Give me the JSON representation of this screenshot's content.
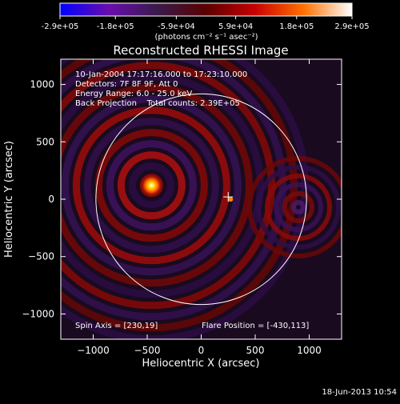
{
  "chart_data": {
    "type": "heatmap",
    "title": "Reconstructed RHESSI Image",
    "xlabel": "Heliocentric X (arcsec)",
    "ylabel": "Heliocentric Y (arcsec)",
    "xlim": [
      -1300,
      1300
    ],
    "ylim": [
      -1220,
      1220
    ],
    "xticks": [
      -1000,
      -500,
      0,
      500,
      1000
    ],
    "yticks": [
      -1000,
      -500,
      0,
      500,
      1000
    ],
    "colorbar": {
      "range": [
        -290000,
        290000
      ],
      "tick_labels": [
        "-2.9e+05",
        "-1.8e+05",
        "-5.9e+04",
        "5.9e+04",
        "1.8e+05",
        "2.9e+05"
      ],
      "unit_label": "(photons cm⁻² s⁻¹ asec⁻²)",
      "colors": [
        "#0000ff",
        "#6a0dad",
        "#3a1a4a",
        "#5a0000",
        "#c80000",
        "#ff7000",
        "#ffffff"
      ]
    },
    "info_lines": [
      "10-Jan-2004 17:17:16.000 to 17:23:10.000",
      "Detectors: 7F 8F 9F, Att 0",
      "Energy Range: 6.0 - 25.0 keV",
      "Back Projection    Total counts: 2.39E+05"
    ],
    "spin_axis": "Spin Axis = [230,19]",
    "flare_position": "Flare Position = [-430,113]",
    "sources": [
      {
        "x": -460,
        "y": 120,
        "kind": "bright"
      },
      {
        "x": 250,
        "y": 20,
        "kind": "cross"
      }
    ],
    "solar_disk_radius": 975,
    "footer_date": "18-Jun-2013 10:54"
  }
}
